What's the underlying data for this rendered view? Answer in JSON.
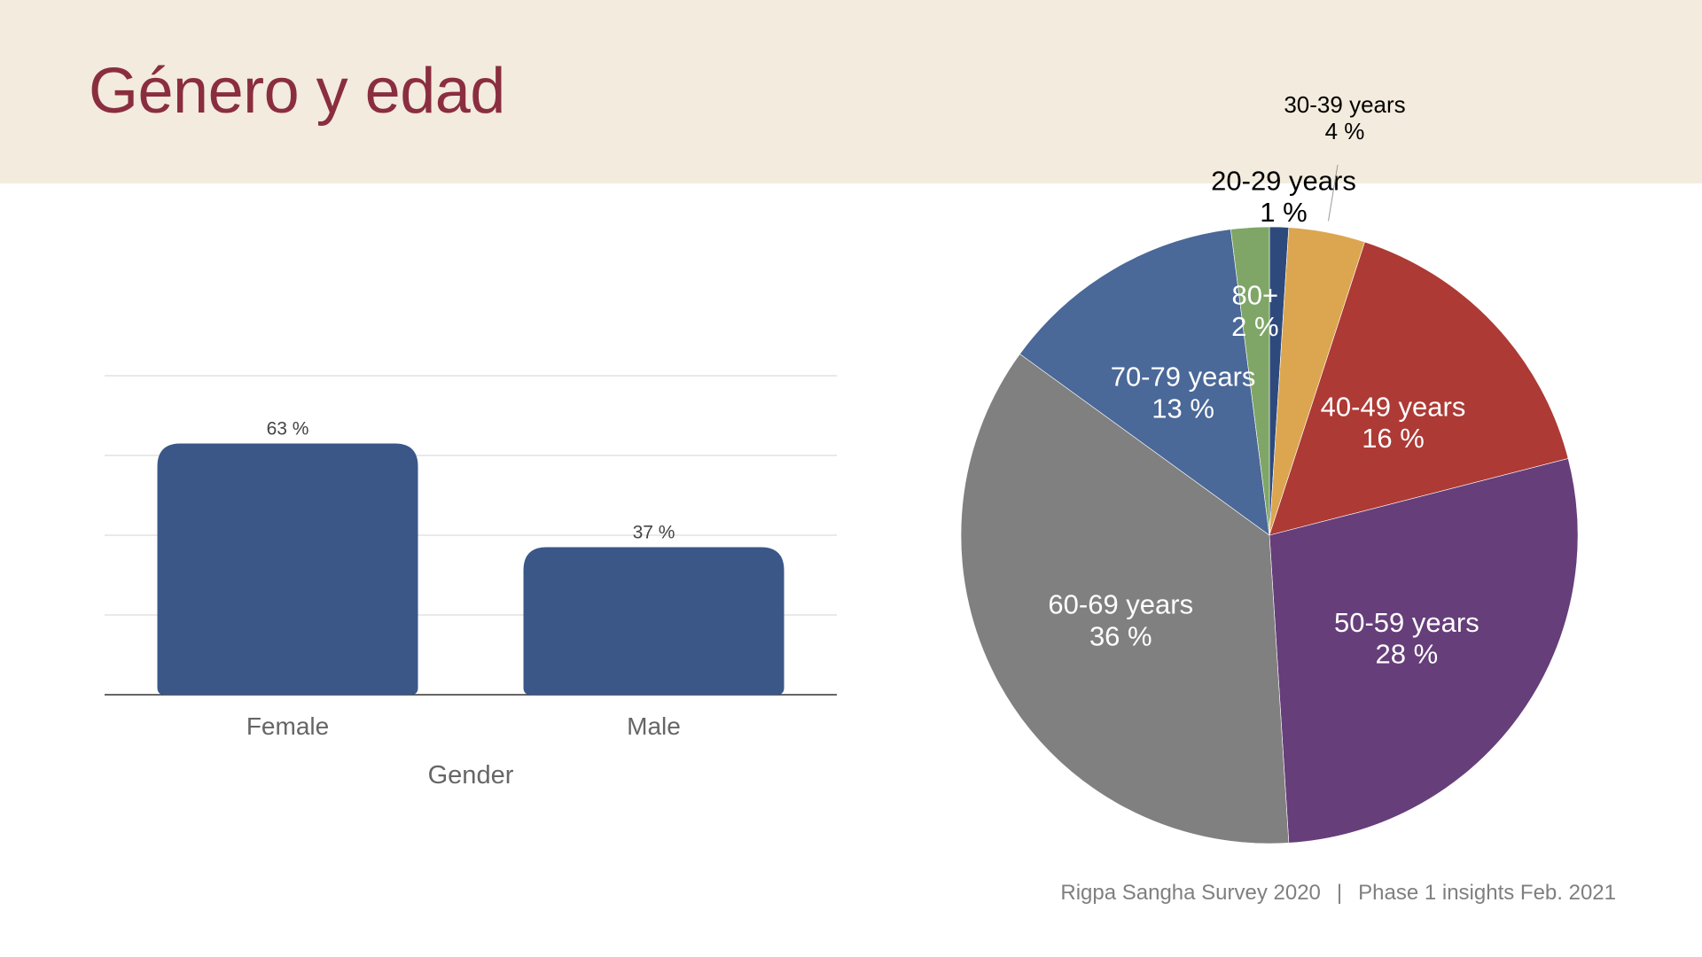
{
  "slide": {
    "title": "Género y edad"
  },
  "footer": {
    "left_text": "Rigpa Sangha Survey 2020",
    "separator": "|",
    "right_text": "Phase 1 insights Feb. 2021"
  },
  "colors": {
    "header_band": "#f3ebdd",
    "title": "#8a2e3f",
    "bar": "#3a5787"
  },
  "chart_data": [
    {
      "type": "bar",
      "title": "",
      "xlabel": "Gender",
      "ylabel": "",
      "categories": [
        "Female",
        "Male"
      ],
      "values": [
        63,
        37
      ],
      "data_labels": [
        "63 %",
        "37 %"
      ],
      "ylim": [
        0,
        80
      ],
      "grid": true,
      "bar_color": "#3a5787"
    },
    {
      "type": "pie",
      "title": "",
      "start_angle_deg": 0,
      "direction": "clockwise",
      "slices": [
        {
          "label": "20-29 years",
          "value": 1,
          "display": "1 %",
          "color": "#2e4a7d",
          "label_color": "#000000",
          "label_pos": "outside"
        },
        {
          "label": "30-39 years",
          "value": 4,
          "display": "4 %",
          "color": "#dba64f",
          "label_color": "#000000",
          "label_pos": "outside"
        },
        {
          "label": "40-49 years",
          "value": 16,
          "display": "16 %",
          "color": "#ad3a35",
          "label_color": "#ffffff",
          "label_pos": "inside"
        },
        {
          "label": "50-59 years",
          "value": 28,
          "display": "28 %",
          "color": "#663e7a",
          "label_color": "#ffffff",
          "label_pos": "inside"
        },
        {
          "label": "60-69 years",
          "value": 36,
          "display": "36 %",
          "color": "#7f807f",
          "label_color": "#ffffff",
          "label_pos": "inside"
        },
        {
          "label": "70-79 years",
          "value": 13,
          "display": "13 %",
          "color": "#4a6898",
          "label_color": "#ffffff",
          "label_pos": "inside"
        },
        {
          "label": "80+",
          "value": 2,
          "display": "2 %",
          "color": "#7fa666",
          "label_color": "#ffffff",
          "label_pos": "inside"
        }
      ]
    }
  ]
}
